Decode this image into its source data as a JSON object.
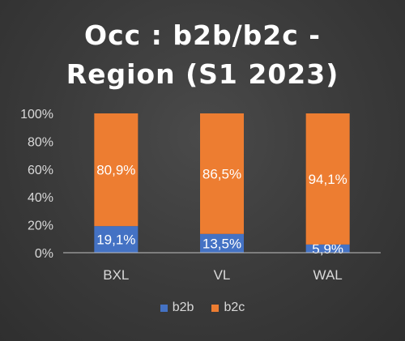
{
  "colors": {
    "b2b": "#4472c4",
    "b2c": "#ed7d31",
    "background": "#3a3a3a",
    "text": "#d9d9d9"
  },
  "chart_data": {
    "type": "bar",
    "stacked": true,
    "percent_stacked": true,
    "title": "Occ : b2b/b2c - Region (S1 2023)",
    "title_lines": [
      "Occ : b2b/b2c -",
      "Region (S1 2023)"
    ],
    "categories": [
      "BXL",
      "VL",
      "WAL"
    ],
    "series": [
      {
        "name": "b2b",
        "values": [
          19.1,
          13.5,
          5.9
        ],
        "labels": [
          "19,1%",
          "13,5%",
          "5,9%"
        ],
        "color": "#4472c4"
      },
      {
        "name": "b2c",
        "values": [
          80.9,
          86.5,
          94.1
        ],
        "labels": [
          "80,9%",
          "86,5%",
          "94,1%"
        ],
        "color": "#ed7d31"
      }
    ],
    "yticks": [
      "0%",
      "20%",
      "40%",
      "60%",
      "80%",
      "100%"
    ],
    "ylim": [
      0,
      100
    ],
    "grid": false,
    "legend_position": "bottom"
  }
}
